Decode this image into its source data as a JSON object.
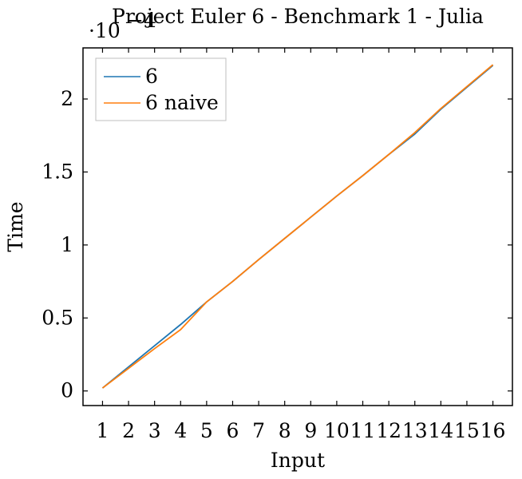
{
  "chart_data": {
    "type": "line",
    "title": "Project Euler 6 - Benchmark 1 - Julia",
    "xlabel": "Input",
    "ylabel": "Time",
    "y_scale_label": "·10",
    "y_scale_exponent": "−4",
    "x": [
      1,
      2,
      3,
      4,
      5,
      6,
      7,
      8,
      9,
      10,
      11,
      12,
      13,
      14,
      15,
      16
    ],
    "x_tick_labels": [
      "1",
      "2",
      "3",
      "4",
      "5",
      "6",
      "7",
      "8",
      "9",
      "10",
      "11",
      "12",
      "13",
      "14",
      "15",
      "16"
    ],
    "xlim": [
      0.25,
      16.75
    ],
    "ylim": [
      -0.1,
      2.35
    ],
    "y_ticks": [
      0,
      0.5,
      1,
      1.5,
      2
    ],
    "y_tick_labels": [
      "0",
      "0.5",
      "1",
      "1.5",
      "2"
    ],
    "grid": false,
    "legend_position": "top-left",
    "series": [
      {
        "name": "6",
        "color": "#1f77b4",
        "values": [
          0.02,
          0.165,
          0.31,
          0.455,
          0.61,
          0.75,
          0.9,
          1.045,
          1.19,
          1.335,
          1.475,
          1.62,
          1.76,
          1.93,
          2.08,
          2.23
        ]
      },
      {
        "name": "6 naive",
        "color": "#ff7f0e",
        "values": [
          0.02,
          0.155,
          0.29,
          0.42,
          0.61,
          0.75,
          0.9,
          1.045,
          1.19,
          1.335,
          1.475,
          1.62,
          1.77,
          1.935,
          2.085,
          2.235
        ]
      }
    ]
  }
}
